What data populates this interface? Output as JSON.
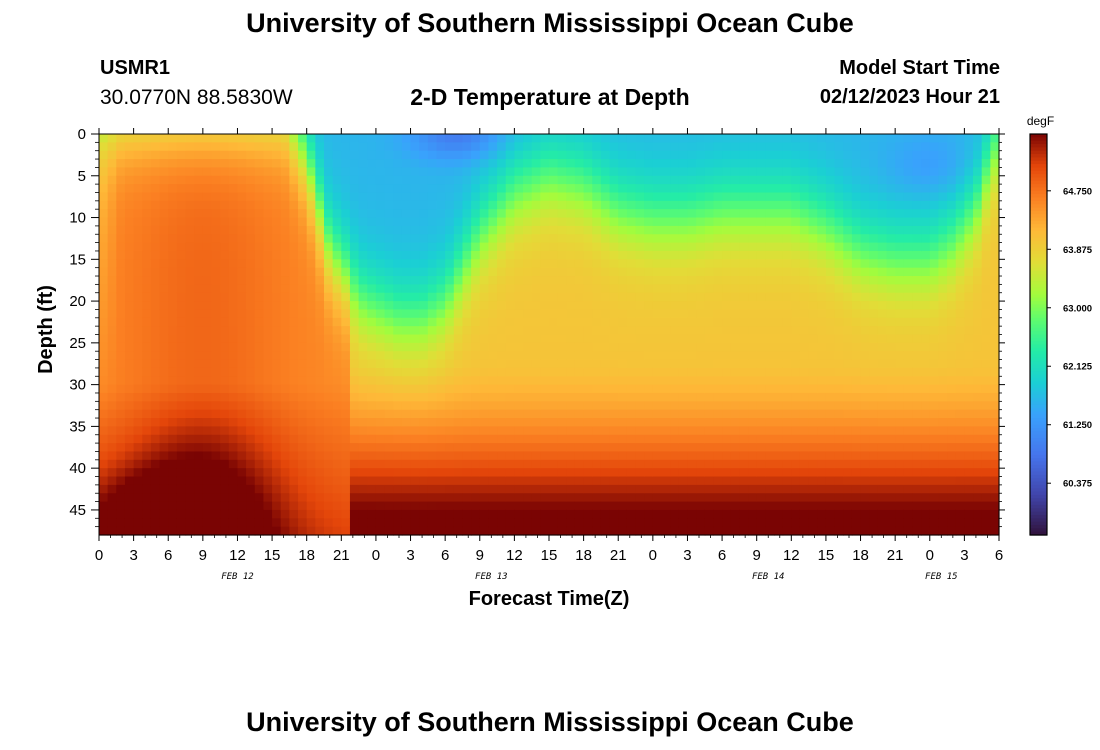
{
  "header": {
    "title": "University of Southern Mississippi Ocean Cube",
    "station": "USMR1",
    "coords": "30.0770N  88.5830W",
    "subtitle": "2-D Temperature at Depth",
    "model_label": "Model Start Time",
    "model_time": "02/12/2023 Hour 21"
  },
  "footer": {
    "title": "University of Southern Mississippi Ocean Cube"
  },
  "chart_data": {
    "type": "heatmap",
    "title": "2-D Temperature at Depth",
    "xlabel": "Forecast Time(Z)",
    "ylabel": "Depth (ft)",
    "x_range_hours": [
      0,
      78
    ],
    "y_range_ft": [
      0,
      48
    ],
    "x_ticks": [
      "0",
      "3",
      "6",
      "9",
      "12",
      "15",
      "18",
      "21",
      "0",
      "3",
      "6",
      "9",
      "12",
      "15",
      "18",
      "21",
      "0",
      "3",
      "6",
      "9",
      "12",
      "15",
      "18",
      "21",
      "0",
      "3",
      "6"
    ],
    "y_ticks": [
      "0",
      "5",
      "10",
      "15",
      "20",
      "25",
      "30",
      "35",
      "40",
      "45"
    ],
    "day_labels": [
      {
        "text": "FEB 12",
        "hour": 12
      },
      {
        "text": "FEB 13",
        "hour": 34
      },
      {
        "text": "FEB 14",
        "hour": 58
      },
      {
        "text": "FEB 15",
        "hour": 73
      }
    ],
    "colorbar": {
      "unit": "degF",
      "range": [
        59.6,
        65.6
      ],
      "labels": [
        "64.750",
        "63.875",
        "63.000",
        "62.125",
        "61.250",
        "60.375"
      ]
    },
    "colors": {
      "cold": "#30123b",
      "warm": "#7a0403"
    }
  }
}
